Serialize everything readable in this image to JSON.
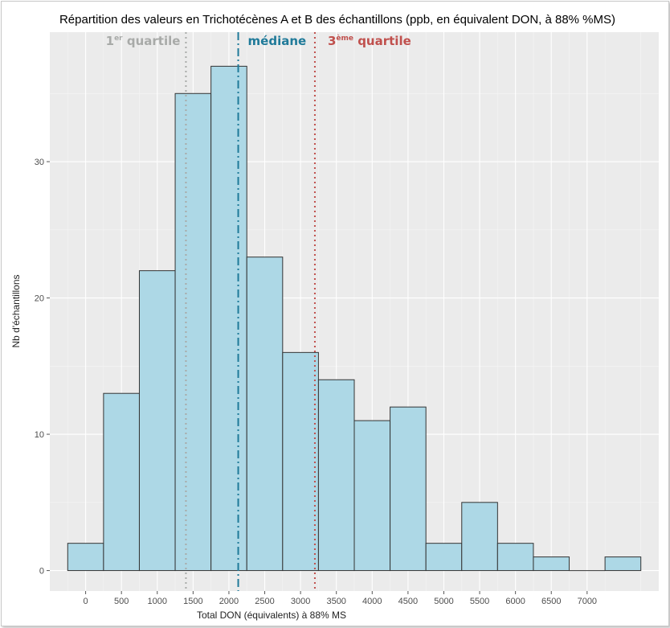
{
  "chart_data": {
    "type": "bar",
    "title": "Répartition des valeurs en Trichotécènes A et B des échantillons (ppb, en équivalent DON, à 88% %MS)",
    "xlabel": "Total DON (équivalents) à 88% MS",
    "ylabel": "Nb d'échantillons",
    "bin_width": 500,
    "bins": [
      {
        "start": -250,
        "end": 250,
        "count": 2
      },
      {
        "start": 250,
        "end": 750,
        "count": 13
      },
      {
        "start": 750,
        "end": 1250,
        "count": 22
      },
      {
        "start": 1250,
        "end": 1750,
        "count": 35
      },
      {
        "start": 1750,
        "end": 2250,
        "count": 37
      },
      {
        "start": 2250,
        "end": 2750,
        "count": 23
      },
      {
        "start": 2750,
        "end": 3250,
        "count": 16
      },
      {
        "start": 3250,
        "end": 3750,
        "count": 14
      },
      {
        "start": 3750,
        "end": 4250,
        "count": 11
      },
      {
        "start": 4250,
        "end": 4750,
        "count": 12
      },
      {
        "start": 4750,
        "end": 5250,
        "count": 2
      },
      {
        "start": 5250,
        "end": 5750,
        "count": 5
      },
      {
        "start": 5750,
        "end": 6250,
        "count": 2
      },
      {
        "start": 6250,
        "end": 6750,
        "count": 1
      },
      {
        "start": 6750,
        "end": 7250,
        "count": 0
      },
      {
        "start": 7250,
        "end": 7750,
        "count": 1
      }
    ],
    "xlim": [
      -500,
      8000
    ],
    "ylim": [
      -1.5,
      39.5
    ],
    "xticks": [
      0,
      500,
      1000,
      1500,
      2000,
      2500,
      3000,
      3500,
      4000,
      4500,
      5000,
      5500,
      6000,
      6500,
      7000
    ],
    "yticks": [
      0,
      10,
      20,
      30
    ],
    "grid": true,
    "colors": {
      "bar_fill": "#add8e6",
      "bar_stroke": "#333333",
      "panel_bg": "#ebebeb",
      "grid": "#ffffff"
    },
    "reference_lines": [
      {
        "label": "1",
        "sup": "er",
        "label_rest": " quartile",
        "x": 1400,
        "style": "dotted",
        "color": "#a8aaa8"
      },
      {
        "label": "médiane",
        "sup": "",
        "label_rest": "",
        "x": 2130,
        "style": "dashdot",
        "color": "#1f7a99"
      },
      {
        "label": "3",
        "sup": "ème",
        "label_rest": " quartile",
        "x": 3200,
        "style": "dotted",
        "color": "#c0504d"
      }
    ]
  }
}
